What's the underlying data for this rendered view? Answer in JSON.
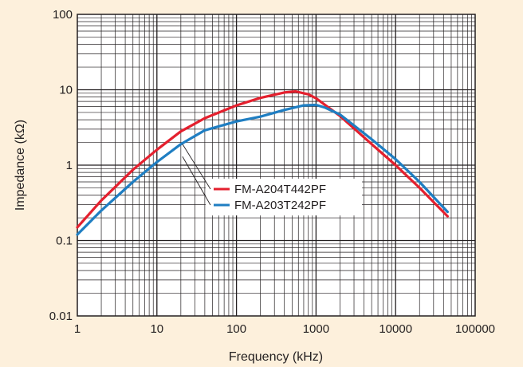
{
  "chart_data": {
    "type": "line",
    "title": "",
    "xlabel": "Frequency (kHz)",
    "ylabel": "Impedance (kΩ)",
    "xscale": "log",
    "yscale": "log",
    "xlim": [
      1,
      100000
    ],
    "ylim": [
      0.01,
      100
    ],
    "x_tick_labels": [
      "1",
      "10",
      "100",
      "1000",
      "10000",
      "100000"
    ],
    "y_tick_labels": [
      "0.01",
      "0.1",
      "1",
      "10",
      "100"
    ],
    "grid": true,
    "legend_position": "center",
    "colors": {
      "background": "#fdf0dc",
      "plot_area": "#ffffff",
      "grid": "#231f20"
    },
    "series": [
      {
        "name": "FM-A204T442PF",
        "color": "#e4202e",
        "points": [
          [
            1,
            0.15
          ],
          [
            2,
            0.34
          ],
          [
            5,
            0.87
          ],
          [
            10,
            1.6
          ],
          [
            20,
            2.8
          ],
          [
            40,
            4.2
          ],
          [
            100,
            6.2
          ],
          [
            200,
            7.8
          ],
          [
            400,
            9.2
          ],
          [
            550,
            9.5
          ],
          [
            800,
            8.7
          ],
          [
            1000,
            7.7
          ],
          [
            2000,
            4.5
          ],
          [
            5000,
            1.9
          ],
          [
            10000,
            1.0
          ],
          [
            20000,
            0.5
          ],
          [
            45000,
            0.21
          ]
        ]
      },
      {
        "name": "FM-A203T242PF",
        "color": "#1f7ec2",
        "points": [
          [
            1,
            0.12
          ],
          [
            2,
            0.25
          ],
          [
            5,
            0.6
          ],
          [
            10,
            1.1
          ],
          [
            20,
            1.9
          ],
          [
            40,
            2.9
          ],
          [
            100,
            3.8
          ],
          [
            200,
            4.4
          ],
          [
            400,
            5.4
          ],
          [
            700,
            6.2
          ],
          [
            1000,
            6.3
          ],
          [
            1300,
            5.8
          ],
          [
            2000,
            4.7
          ],
          [
            5000,
            2.2
          ],
          [
            10000,
            1.2
          ],
          [
            20000,
            0.6
          ],
          [
            45000,
            0.24
          ]
        ]
      }
    ]
  }
}
